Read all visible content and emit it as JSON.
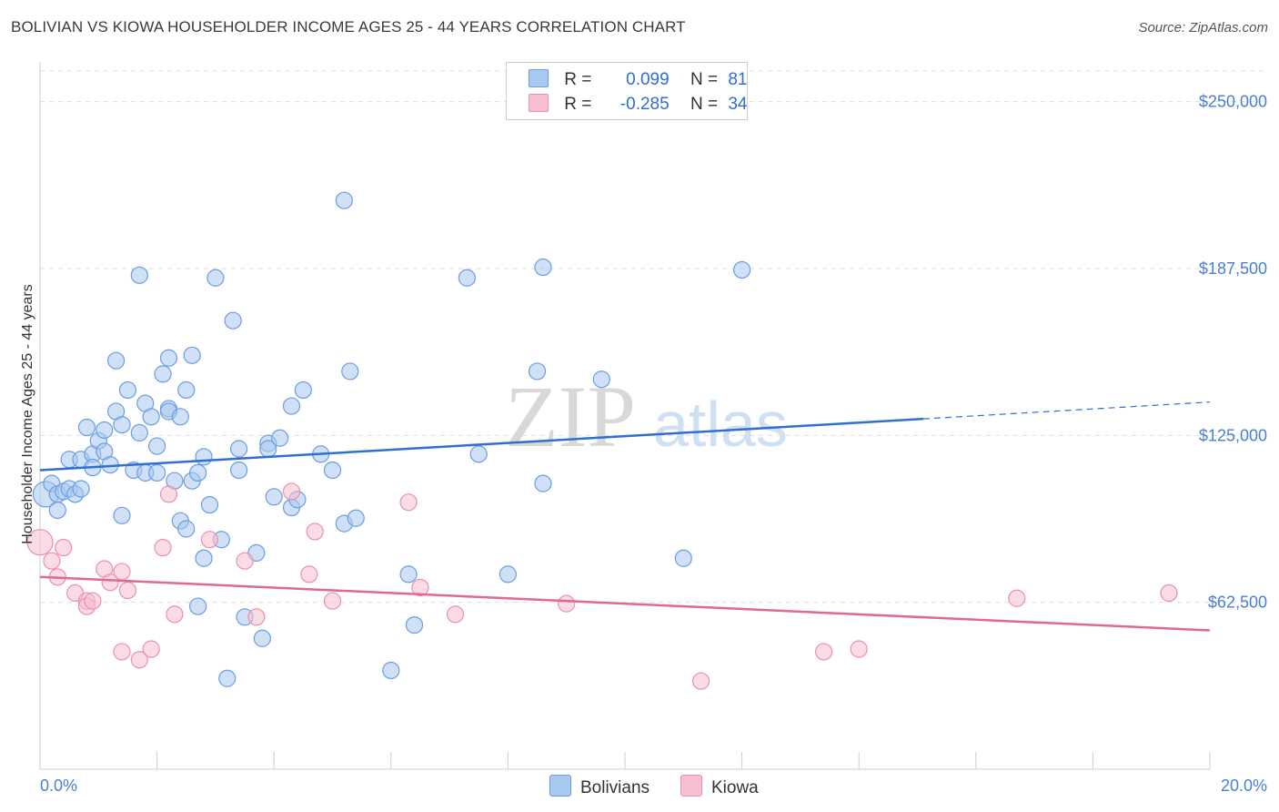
{
  "title": "BOLIVIAN VS KIOWA HOUSEHOLDER INCOME AGES 25 - 44 YEARS CORRELATION CHART",
  "source": "Source: ZipAtlas.com",
  "watermark": {
    "zip": "ZIP",
    "atlas": "atlas"
  },
  "legend": {
    "r_label": "R =",
    "n_label": "N =",
    "series": [
      {
        "name": "Bolivians",
        "r": "0.099",
        "n": "81",
        "color": "#a9c8f0",
        "stroke": "#6a9ee0"
      },
      {
        "name": "Kiowa",
        "r": "-0.285",
        "n": "34",
        "color": "#f7bfd0",
        "stroke": "#e890ae"
      }
    ]
  },
  "chart_data": {
    "type": "scatter",
    "ylabel": "Householder Income Ages 25 - 44 years",
    "xlim": [
      0,
      20
    ],
    "ylim": [
      0,
      262500
    ],
    "x_tick_labels": [
      "0.0%",
      "20.0%"
    ],
    "y_ticks": [
      62500,
      125000,
      187500,
      250000
    ],
    "y_tick_labels": [
      "$62,500",
      "$125,000",
      "$187,500",
      "$250,000"
    ],
    "grid": "horizontal dashed",
    "series": [
      {
        "name": "Bolivians",
        "color": "#a9c8f0",
        "line_color": "#2f6fd1",
        "trend": {
          "x0": 0,
          "y0": 112000,
          "x1": 15.1,
          "y1": 131200,
          "x_dash_end": 20,
          "y_dash_end": 137500
        },
        "points": [
          [
            0.1,
            103000
          ],
          [
            0.2,
            107000
          ],
          [
            0.3,
            103000
          ],
          [
            0.3,
            97000
          ],
          [
            0.4,
            104000
          ],
          [
            0.5,
            105000
          ],
          [
            0.5,
            116000
          ],
          [
            0.6,
            103000
          ],
          [
            0.7,
            116000
          ],
          [
            0.7,
            105000
          ],
          [
            0.8,
            128000
          ],
          [
            0.9,
            118000
          ],
          [
            0.9,
            113000
          ],
          [
            1.0,
            123000
          ],
          [
            1.1,
            119000
          ],
          [
            1.1,
            127000
          ],
          [
            1.2,
            114000
          ],
          [
            1.3,
            153000
          ],
          [
            1.3,
            134000
          ],
          [
            1.4,
            95000
          ],
          [
            1.4,
            129000
          ],
          [
            1.5,
            142000
          ],
          [
            1.6,
            112000
          ],
          [
            1.7,
            126000
          ],
          [
            1.7,
            185000
          ],
          [
            1.8,
            111000
          ],
          [
            1.8,
            137000
          ],
          [
            1.9,
            132000
          ],
          [
            2.0,
            121000
          ],
          [
            2.0,
            111000
          ],
          [
            2.1,
            148000
          ],
          [
            2.2,
            135000
          ],
          [
            2.2,
            134000
          ],
          [
            2.2,
            154000
          ],
          [
            2.3,
            108000
          ],
          [
            2.4,
            93000
          ],
          [
            2.4,
            132000
          ],
          [
            2.5,
            90000
          ],
          [
            2.5,
            142000
          ],
          [
            2.6,
            108000
          ],
          [
            2.6,
            155000
          ],
          [
            2.7,
            61000
          ],
          [
            2.7,
            111000
          ],
          [
            2.8,
            79000
          ],
          [
            2.8,
            117000
          ],
          [
            2.9,
            99000
          ],
          [
            3.0,
            184000
          ],
          [
            3.1,
            86000
          ],
          [
            3.3,
            168000
          ],
          [
            3.4,
            120000
          ],
          [
            3.4,
            112000
          ],
          [
            3.5,
            57000
          ],
          [
            3.7,
            81000
          ],
          [
            3.8,
            49000
          ],
          [
            3.9,
            122000
          ],
          [
            3.9,
            120000
          ],
          [
            4.0,
            102000
          ],
          [
            4.1,
            124000
          ],
          [
            4.3,
            98000
          ],
          [
            4.3,
            136000
          ],
          [
            4.4,
            101000
          ],
          [
            4.5,
            142000
          ],
          [
            4.8,
            118000
          ],
          [
            5.2,
            213000
          ],
          [
            5.2,
            92000
          ],
          [
            5.3,
            149000
          ],
          [
            5.0,
            112000
          ],
          [
            5.4,
            94000
          ],
          [
            6.0,
            37000
          ],
          [
            6.3,
            73000
          ],
          [
            6.4,
            54000
          ],
          [
            7.3,
            184000
          ],
          [
            7.5,
            118000
          ],
          [
            8.0,
            73000
          ],
          [
            8.5,
            149000
          ],
          [
            8.6,
            188000
          ],
          [
            8.6,
            107000
          ],
          [
            9.6,
            146000
          ],
          [
            11.0,
            79000
          ],
          [
            12.0,
            187000
          ],
          [
            3.2,
            34000
          ]
        ]
      },
      {
        "name": "Kiowa",
        "color": "#f7bfd0",
        "line_color": "#e06896",
        "trend": {
          "x0": 0,
          "y0": 72000,
          "x1": 20,
          "y1": 52000
        },
        "points": [
          [
            0.0,
            85000
          ],
          [
            0.2,
            78000
          ],
          [
            0.3,
            72000
          ],
          [
            0.4,
            83000
          ],
          [
            0.6,
            66000
          ],
          [
            0.8,
            63000
          ],
          [
            0.8,
            61000
          ],
          [
            0.9,
            63000
          ],
          [
            1.1,
            75000
          ],
          [
            1.2,
            70000
          ],
          [
            1.4,
            74000
          ],
          [
            1.4,
            44000
          ],
          [
            1.5,
            67000
          ],
          [
            1.7,
            41000
          ],
          [
            1.9,
            45000
          ],
          [
            2.1,
            83000
          ],
          [
            2.2,
            103000
          ],
          [
            2.3,
            58000
          ],
          [
            2.9,
            86000
          ],
          [
            3.5,
            78000
          ],
          [
            3.7,
            57000
          ],
          [
            4.3,
            104000
          ],
          [
            4.6,
            73000
          ],
          [
            4.7,
            89000
          ],
          [
            5.0,
            63000
          ],
          [
            6.3,
            100000
          ],
          [
            6.5,
            68000
          ],
          [
            7.1,
            58000
          ],
          [
            9.0,
            62000
          ],
          [
            11.3,
            33000
          ],
          [
            13.4,
            44000
          ],
          [
            14.0,
            45000
          ],
          [
            16.7,
            64000
          ],
          [
            19.3,
            66000
          ]
        ]
      }
    ]
  }
}
